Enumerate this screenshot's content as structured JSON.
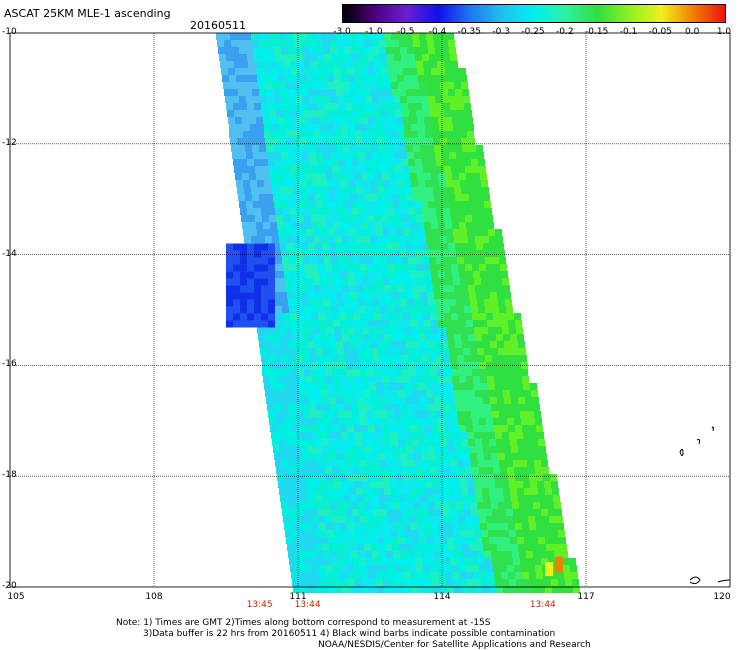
{
  "header": {
    "title": "ASCAT 25KM MLE-1 ascending",
    "date": "20160511"
  },
  "colorbar": {
    "labels": [
      "-3.0",
      "-1.0",
      "-0.5",
      "-0.4",
      "-0.35",
      "-0.3",
      "-0.25",
      "-0.2",
      "-0.15",
      "-0.1",
      "-0.05",
      "0.0",
      "1.0"
    ],
    "colors": [
      "#000000",
      "#4d0080",
      "#6a1fd0",
      "#1010e8",
      "#1e78f0",
      "#20c0f0",
      "#00f0f0",
      "#30f0a0",
      "#30e040",
      "#90f020",
      "#f0f020",
      "#f08000",
      "#f01010"
    ]
  },
  "map": {
    "lat_range": [
      -20,
      -10
    ],
    "lon_range": [
      105,
      120
    ],
    "lat_ticks": [
      "-10",
      "-12",
      "-14",
      "-16",
      "-18",
      "-20"
    ],
    "lon_ticks": [
      "105",
      "108",
      "111",
      "114",
      "117",
      "120"
    ],
    "time_labels": [
      "13:45",
      "13:44",
      "13:44"
    ],
    "time_label_lons": [
      110.2,
      111.2,
      116.1
    ],
    "swath_corners_lon": {
      "top_left": 109.3,
      "top_right": 113.9,
      "bottom_left": 110.9,
      "bottom_right": 116.5
    },
    "grid": true
  },
  "notes": [
    "Note: 1) Times are GMT 2)Times along bottom correspond to measurement at -15S",
    "3)Data buffer is 22 hrs from 20160511 4) Black wind barbs indicate possible contamination",
    "NOAA/NESDIS/Center for Satellite Applications and Research"
  ],
  "colors": {
    "swath_base": "#00f0f0",
    "gridline": "#000000",
    "timestamp": "#cc2200"
  }
}
